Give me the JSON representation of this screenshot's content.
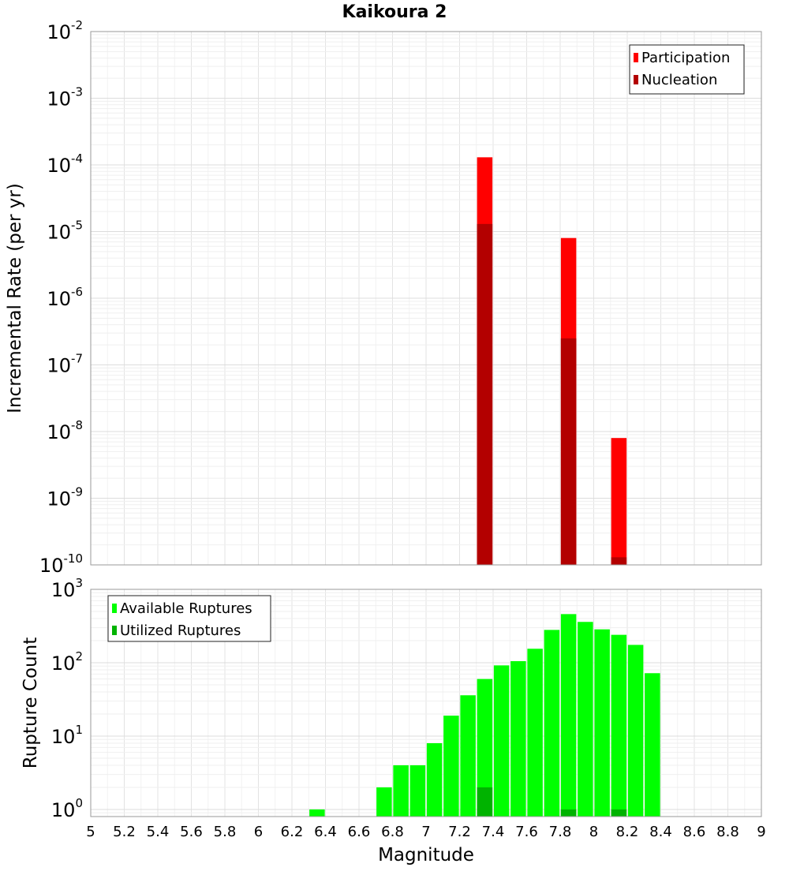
{
  "chart_data": [
    {
      "type": "bar",
      "title": "Kaikoura 2",
      "xlabel": "",
      "ylabel": "Incremental Rate (per yr)",
      "y_scale": "log",
      "ylim": [
        1e-10,
        0.01
      ],
      "xlim": [
        5,
        9
      ],
      "y_tick_exponents": [
        "-10",
        "-9",
        "-8",
        "-7",
        "-6",
        "-5",
        "-4",
        "-3",
        "-2"
      ],
      "grid": true,
      "legend_position": "top-right",
      "series": [
        {
          "name": "Participation",
          "color": "#ff0000",
          "x": [
            7.35,
            7.85,
            8.15
          ],
          "values": [
            0.00013,
            8e-06,
            8e-09
          ]
        },
        {
          "name": "Nucleation",
          "color": "#b30000",
          "x": [
            7.35,
            7.85,
            8.15
          ],
          "values": [
            1.3e-05,
            2.5e-07,
            1.3e-10
          ]
        }
      ]
    },
    {
      "type": "bar",
      "xlabel": "Magnitude",
      "ylabel": "Rupture Count",
      "y_scale": "log",
      "ylim": [
        0.8,
        1000
      ],
      "xlim": [
        5,
        9
      ],
      "x_ticks": [
        "5",
        "5.2",
        "5.4",
        "5.6",
        "5.8",
        "6",
        "6.2",
        "6.4",
        "6.6",
        "6.8",
        "7",
        "7.2",
        "7.4",
        "7.6",
        "7.8",
        "8",
        "8.2",
        "8.4",
        "8.6",
        "8.8",
        "9"
      ],
      "y_tick_exponents": [
        "0",
        "1",
        "2",
        "3"
      ],
      "grid": true,
      "legend_position": "top-left",
      "series": [
        {
          "name": "Available Ruptures",
          "color": "#00ff00",
          "x": [
            6.35,
            6.75,
            6.85,
            6.95,
            7.05,
            7.15,
            7.25,
            7.35,
            7.45,
            7.55,
            7.65,
            7.75,
            7.85,
            7.95,
            8.05,
            8.15,
            8.25,
            8.35
          ],
          "values": [
            1,
            2,
            4,
            4,
            8,
            19,
            36,
            60,
            92,
            105,
            155,
            280,
            460,
            360,
            285,
            240,
            175,
            72
          ]
        },
        {
          "name": "Utilized Ruptures",
          "color": "#00b300",
          "x": [
            7.35,
            7.85,
            8.15
          ],
          "values": [
            2,
            1,
            1
          ]
        }
      ]
    }
  ]
}
